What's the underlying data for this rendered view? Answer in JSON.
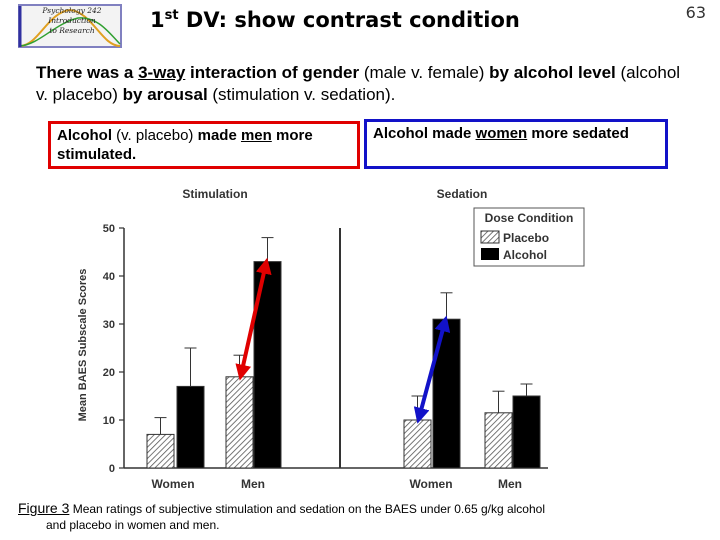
{
  "header": {
    "logo_lines": [
      "Psychology 242",
      "Introduction",
      "to Research"
    ],
    "title_prefix": "1",
    "title_sup": "st",
    "title_rest": " DV: show contrast condition",
    "slide_number": "63"
  },
  "intro": {
    "p1": "There was a ",
    "p2": "3-way",
    "p3": " interaction of gender ",
    "p4": "(male v. female)",
    "p5": " by alcohol level ",
    "p6": "(alcohol v. placebo)",
    "p7": " by arousal ",
    "p8": "(stimulation v. sedation).",
    "p9": ""
  },
  "callouts": {
    "red": {
      "a": "Alcohol ",
      "b": "(v. placebo)",
      "c": " made ",
      "d": "men",
      "e": " more stimulated."
    },
    "blue": {
      "a": "Alcohol made ",
      "b": "women",
      "c": " more sedated"
    },
    "colors": {
      "red": "#e00000",
      "blue": "#1212c8"
    }
  },
  "chart_data": {
    "type": "bar",
    "ylabel": "Mean BAES Subscale Scores",
    "ylim": [
      0,
      50
    ],
    "yticks": [
      0,
      10,
      20,
      30,
      40,
      50
    ],
    "legend": {
      "title": "Dose Condition",
      "position": "top-right",
      "entries": [
        "Placebo",
        "Alcohol"
      ]
    },
    "panels": [
      {
        "title": "Stimulation",
        "categories": [
          "Women",
          "Men"
        ],
        "series": [
          {
            "name": "Placebo",
            "values": [
              7,
              19
            ],
            "errors": [
              3.5,
              4.5
            ]
          },
          {
            "name": "Alcohol",
            "values": [
              17,
              43
            ],
            "errors": [
              8,
              5
            ]
          }
        ],
        "arrow": {
          "category": "Men",
          "from": 19,
          "to": 43,
          "color": "#e00000"
        }
      },
      {
        "title": "Sedation",
        "categories": [
          "Women",
          "Men"
        ],
        "series": [
          {
            "name": "Placebo",
            "values": [
              10,
              11.5
            ],
            "errors": [
              5,
              4.5
            ]
          },
          {
            "name": "Alcohol",
            "values": [
              31,
              15
            ],
            "errors": [
              5.5,
              2.5
            ]
          }
        ],
        "arrow": {
          "category": "Women",
          "from": 10,
          "to": 31,
          "color": "#1212c8"
        }
      }
    ]
  },
  "caption": {
    "figure_label": "Figure 3",
    "text": " Mean ratings of subjective stimulation and sedation on the BAES under 0.65 g/kg alcohol",
    "text2": "and placebo in women and men."
  }
}
